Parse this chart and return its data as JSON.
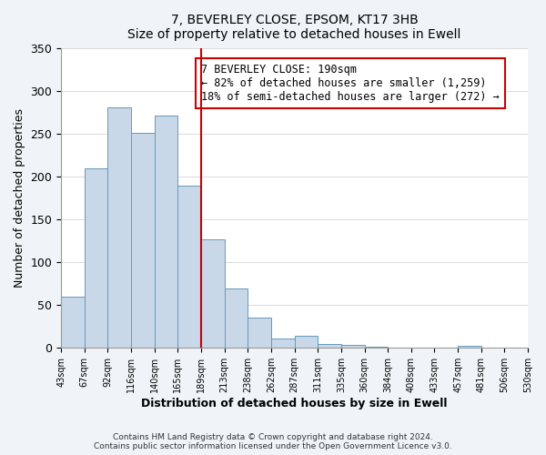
{
  "title": "7, BEVERLEY CLOSE, EPSOM, KT17 3HB",
  "subtitle": "Size of property relative to detached houses in Ewell",
  "xlabel": "Distribution of detached houses by size in Ewell",
  "ylabel": "Number of detached properties",
  "bin_labels": [
    "43sqm",
    "67sqm",
    "92sqm",
    "116sqm",
    "140sqm",
    "165sqm",
    "189sqm",
    "213sqm",
    "238sqm",
    "262sqm",
    "287sqm",
    "311sqm",
    "335sqm",
    "360sqm",
    "384sqm",
    "408sqm",
    "433sqm",
    "457sqm",
    "481sqm",
    "506sqm",
    "530sqm"
  ],
  "bar_heights": [
    60,
    210,
    281,
    251,
    272,
    190,
    127,
    70,
    35,
    11,
    14,
    5,
    4,
    1,
    0,
    0,
    0,
    2,
    0,
    0,
    2
  ],
  "bar_color": "#c8d8e8",
  "bar_edgecolor": "#6699bb",
  "highlight_bin_index": 6,
  "highlight_line_color": "#cc0000",
  "ylim": [
    0,
    350
  ],
  "yticks": [
    0,
    50,
    100,
    150,
    200,
    250,
    300,
    350
  ],
  "annotation_title": "7 BEVERLEY CLOSE: 190sqm",
  "annotation_line1": "← 82% of detached houses are smaller (1,259)",
  "annotation_line2": "18% of semi-detached houses are larger (272) →",
  "annotation_box_color": "#ffffff",
  "annotation_box_edgecolor": "#cc0000",
  "footer_line1": "Contains HM Land Registry data © Crown copyright and database right 2024.",
  "footer_line2": "Contains public sector information licensed under the Open Government Licence v3.0.",
  "background_color": "#f0f4f8",
  "plot_bg_color": "#ffffff"
}
